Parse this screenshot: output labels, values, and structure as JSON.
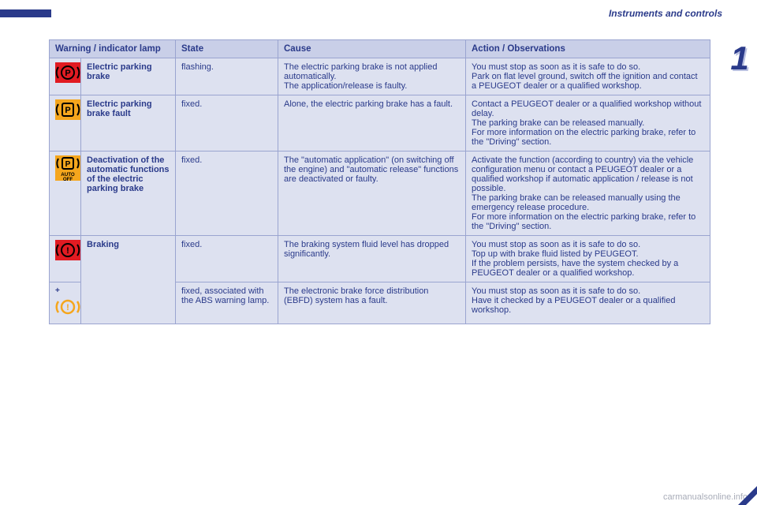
{
  "header": {
    "section": "Instruments and controls",
    "chapter": "1"
  },
  "table": {
    "columns": {
      "c0": "Warning / indicator lamp",
      "c1": "State",
      "c2": "Cause",
      "c3": "Action / Observations"
    },
    "rows": [
      {
        "icon": {
          "kind": "p-circle",
          "bg": "#e11b22",
          "fg": "#000000"
        },
        "name": "Electric parking brake",
        "state": "flashing.",
        "cause": "The electric parking brake is not applied automatically.\nThe application/release is faulty.",
        "action": "You must stop as soon as it is safe to do so.\nPark on flat level ground, switch off the ignition and contact a PEUGEOT dealer or a qualified workshop."
      },
      {
        "icon": {
          "kind": "p-rect",
          "bg": "#f5a61d",
          "fg": "#000000"
        },
        "name": "Electric parking brake fault",
        "state": "fixed.",
        "cause": "Alone, the electric parking brake has a fault.",
        "action": "Contact a PEUGEOT dealer or a qualified workshop without delay.\nThe parking brake can be released manually.\nFor more information on the electric parking brake, refer to the \"Driving\" section."
      },
      {
        "icon": {
          "kind": "auto-off",
          "bg": "#f5a61d",
          "fg": "#000000"
        },
        "name": "Deactivation of the automatic functions of the electric parking brake",
        "state": "fixed.",
        "cause": "The \"automatic application\" (on switching off the engine) and \"automatic release\" functions are deactivated or faulty.",
        "action": "Activate the function (according to country) via the vehicle configuration menu or contact a PEUGEOT dealer or a qualified workshop if automatic application / release is not possible.\nThe parking brake can be released manually using the emergency release procedure.\nFor more information on the electric parking brake, refer to the \"Driving\" section."
      },
      {
        "icon": {
          "kind": "exclaim",
          "bg": "#e11b22",
          "fg": "#000000"
        },
        "name": "Braking",
        "state": "fixed.",
        "cause": "The braking system fluid level has dropped significantly.",
        "action": "You must stop as soon as it is safe to do so.\nTop up with brake fluid listed by PEUGEOT.\nIf the problem persists, have the system checked by a PEUGEOT dealer or a qualified workshop."
      },
      {
        "icon": {
          "kind": "exclaim-plus",
          "bg": "#f5a61d",
          "fg": "#000000"
        },
        "state": "fixed, associated with the ABS warning lamp.",
        "cause": "The electronic brake force distribution (EBFD) system has a fault.",
        "action": "You must stop as soon as it is safe to do so.\nHave it checked by a PEUGEOT dealer or a qualified workshop."
      }
    ]
  },
  "footer": {
    "watermark": "carmanualsonline.info"
  }
}
